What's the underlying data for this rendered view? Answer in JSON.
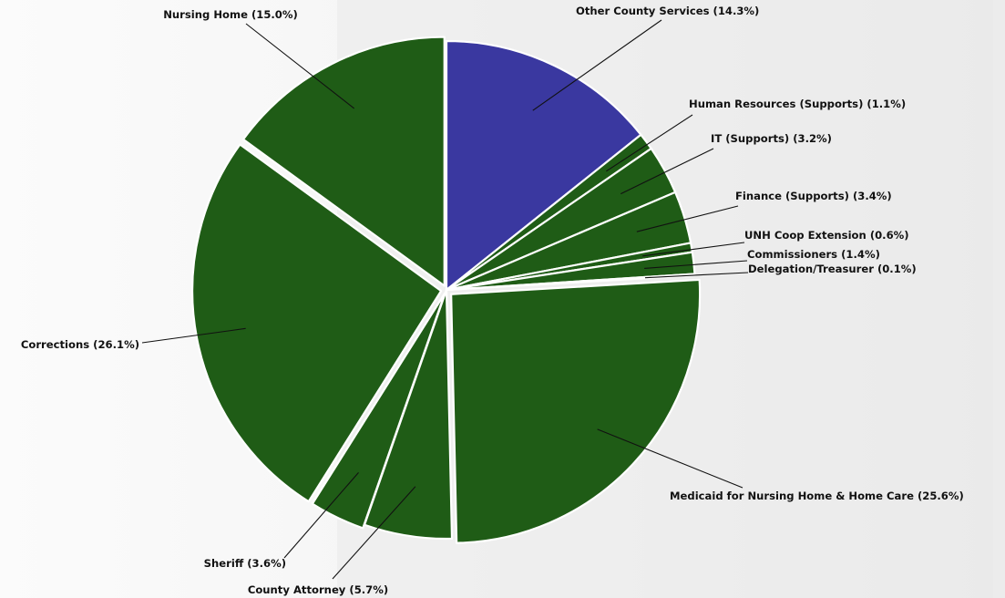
{
  "chart_data": {
    "type": "pie",
    "title": "",
    "slices": [
      {
        "label": "Other County Services (14.3%)",
        "value": 14.3,
        "color": "#3a38a0"
      },
      {
        "label": "Human Resources (Supports) (1.1%)",
        "value": 1.1,
        "color": "#1f5c16"
      },
      {
        "label": "IT (Supports) (3.2%)",
        "value": 3.2,
        "color": "#1f5c16"
      },
      {
        "label": "Finance (Supports) (3.4%)",
        "value": 3.4,
        "color": "#1f5c16"
      },
      {
        "label": "UNH Coop Extension (0.6%)",
        "value": 0.6,
        "color": "#1f5c16"
      },
      {
        "label": "Commissioners (1.4%)",
        "value": 1.4,
        "color": "#1f5c16"
      },
      {
        "label": "Delegation/Treasurer (0.1%)",
        "value": 0.1,
        "color": "#1f5c16"
      },
      {
        "label": "Medicaid for Nursing Home & Home Care (25.6%)",
        "value": 25.6,
        "color": "#1f5c16"
      },
      {
        "label": "County Attorney (5.7%)",
        "value": 5.7,
        "color": "#1f5c16"
      },
      {
        "label": "Sheriff (3.6%)",
        "value": 3.6,
        "color": "#1f5c16"
      },
      {
        "label": "Corrections (26.1%)",
        "value": 26.1,
        "color": "#1f5c16"
      },
      {
        "label": "Nursing Home (15.0%)",
        "value": 15.0,
        "color": "#1f5c16"
      }
    ],
    "start_angle": "12 o'clock",
    "direction": "clockwise",
    "legend": "none"
  }
}
